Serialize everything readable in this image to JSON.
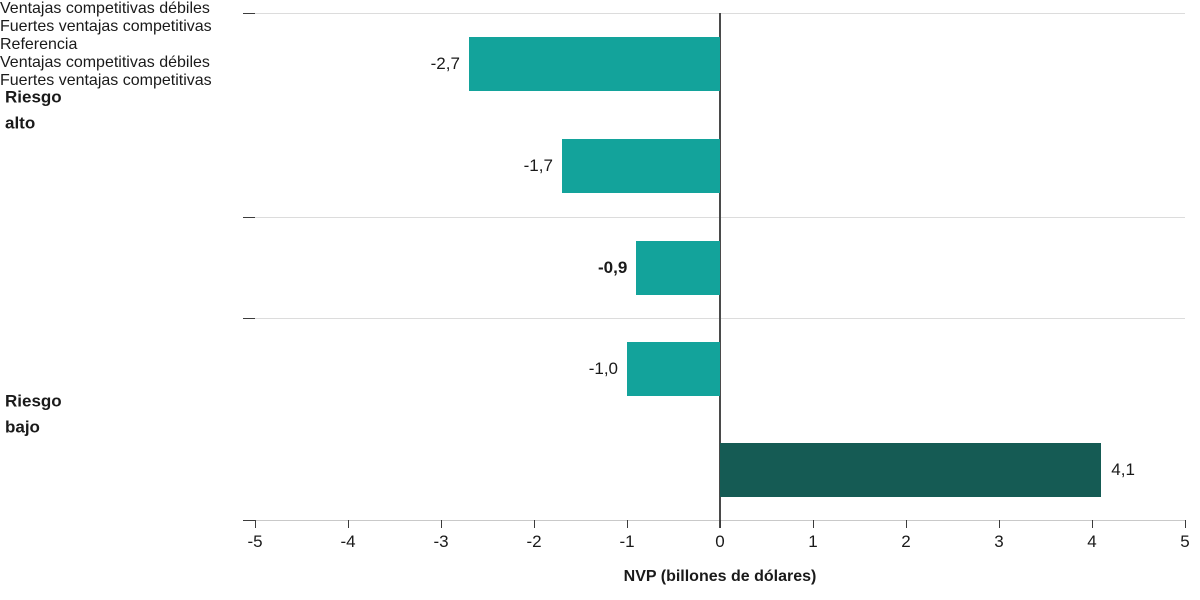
{
  "chart_data": {
    "type": "bar",
    "orientation": "horizontal",
    "title": "",
    "xlabel": "NVP (billones de dólares)",
    "xlim": [
      -5,
      5
    ],
    "x_ticks": [
      -5,
      -4,
      -3,
      -2,
      -1,
      0,
      1,
      2,
      3,
      4,
      5
    ],
    "grid": "horizontal-group-separators",
    "legend": "none",
    "colors": {
      "bar_teal": "#13A39B",
      "bar_dark_teal": "#155B54",
      "zero_line": "#4A4A4A",
      "gridline": "#DCDCDC",
      "text": "#1A1A1A"
    },
    "group_labels": [
      {
        "label": "Riesgo\nalto"
      },
      {
        "label": "Riesgo\nbajo"
      }
    ],
    "bars": [
      {
        "category": "Ventajas\ncompetitivas\ndébiles",
        "group": "Riesgo alto",
        "value": -2.7,
        "value_label": "-2,7",
        "color": "#13A39B",
        "emphasis": false
      },
      {
        "category": "Fuertes\nventajas\ncompetitivas",
        "group": "Riesgo alto",
        "value": -1.7,
        "value_label": "-1,7",
        "color": "#13A39B",
        "emphasis": false
      },
      {
        "category": "Referencia",
        "group": "",
        "value": -0.9,
        "value_label": "-0,9",
        "color": "#13A39B",
        "emphasis": true
      },
      {
        "category": "Ventajas\ncompetitivas\ndébiles",
        "group": "Riesgo bajo",
        "value": -1.0,
        "value_label": "-1,0",
        "color": "#13A39B",
        "emphasis": false
      },
      {
        "category": "Fuertes\nventajas\ncompetitivas",
        "group": "Riesgo bajo",
        "value": 4.1,
        "value_label": "4,1",
        "color": "#155B54",
        "emphasis": false
      }
    ]
  }
}
